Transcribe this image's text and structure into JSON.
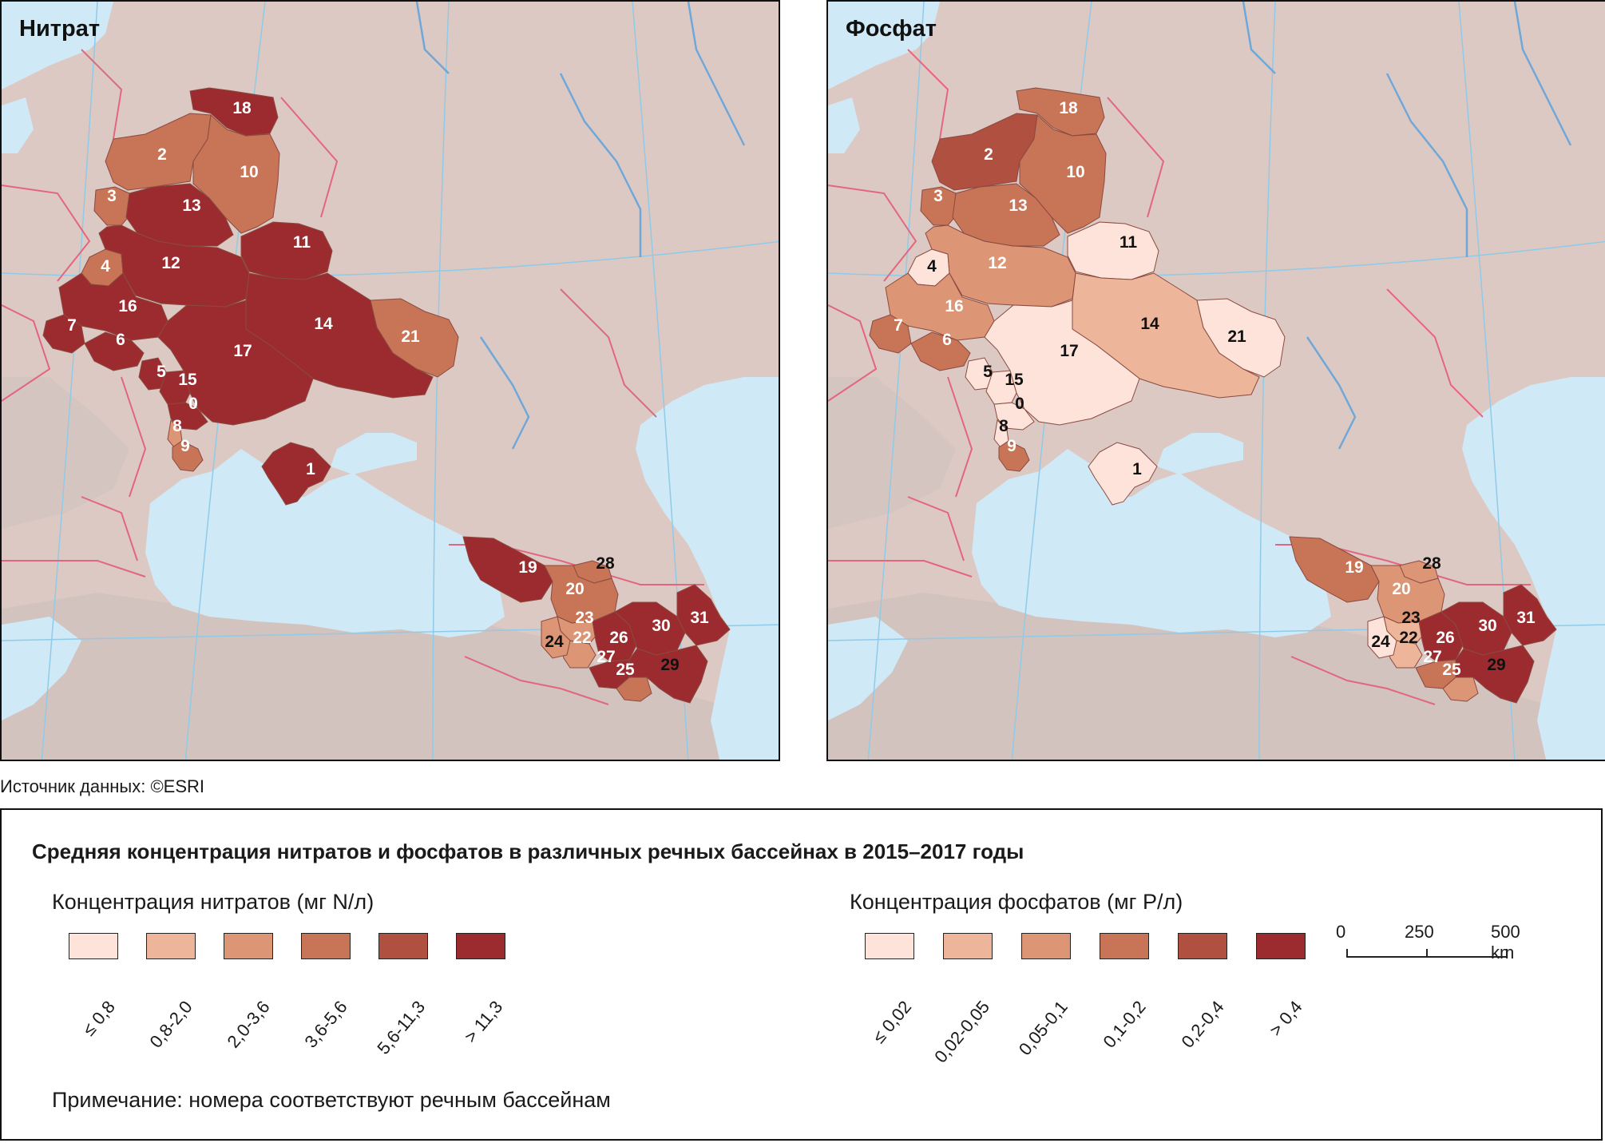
{
  "maps": {
    "left": {
      "title": "Нитрат"
    },
    "right": {
      "title": "Фосфат"
    }
  },
  "source": "Источник данных:  ©ESRI",
  "legend": {
    "title": "Средняя концентрация нитратов и фосфатов в различных речных бассейнах в 2015–2017 годы",
    "nitrate": {
      "heading": "Концентрация нитратов (мг N/л)",
      "classes": [
        {
          "label": "≤ 0,8",
          "color": "#fde3d9"
        },
        {
          "label": "0,8-2,0",
          "color": "#edb59a"
        },
        {
          "label": "2,0-3,6",
          "color": "#dc9575"
        },
        {
          "label": "3,6-5,6",
          "color": "#c87456"
        },
        {
          "label": "5,6-11,3",
          "color": "#b05040"
        },
        {
          "label": "> 11,3",
          "color": "#9c2b2f"
        }
      ]
    },
    "phosphate": {
      "heading": "Концентрация фосфатов (мг P/л)",
      "classes": [
        {
          "label": "≤ 0,02",
          "color": "#fde3d9"
        },
        {
          "label": "0,02-0,05",
          "color": "#edb59a"
        },
        {
          "label": "0,05-0,1",
          "color": "#dc9575"
        },
        {
          "label": "0,1-0,2",
          "color": "#c87456"
        },
        {
          "label": "0,2-0,4",
          "color": "#b05040"
        },
        {
          "label": "> 0,4",
          "color": "#9c2b2f"
        }
      ]
    },
    "scale": {
      "ticks": [
        "0",
        "250",
        "500 km"
      ]
    },
    "note": "Примечание: номера соответствуют речным бассейнам"
  },
  "colors": {
    "water": "#cfe9f7",
    "land": "#dcc9c4",
    "border": "#e3667f",
    "graticule": "#8fcbe8"
  },
  "basins": {
    "nitrate": {
      "18": "> 11,3",
      "2": "3,6-5,6",
      "10": "3,6-5,6",
      "3": "3,6-5,6",
      "13": "> 11,3",
      "11": "> 11,3",
      "4": "3,6-5,6",
      "12": "> 11,3",
      "16": "> 11,3",
      "7": "> 11,3",
      "6": "> 11,3",
      "14": "> 11,3",
      "21": "3,6-5,6",
      "17": "> 11,3",
      "5": "> 11,3",
      "15": "> 11,3",
      "0": "> 11,3",
      "8": "2,0-3,6",
      "9": "3,6-5,6",
      "1": "> 11,3",
      "19": "> 11,3",
      "28": "3,6-5,6",
      "20": "3,6-5,6",
      "23": "2,0-3,6",
      "31": "> 11,3",
      "30": "> 11,3",
      "24": "2,0-3,6",
      "22": "2,0-3,6",
      "26": "> 11,3",
      "27": "> 11,3",
      "25": "3,6-5,6",
      "29": "> 11,3"
    },
    "phosphate": {
      "18": "0,1-0,2",
      "2": "0,2-0,4",
      "10": "0,1-0,2",
      "3": "0,1-0,2",
      "13": "0,1-0,2",
      "11": "≤ 0,02",
      "4": "≤ 0,02",
      "12": "0,05-0,1",
      "16": "0,05-0,1",
      "7": "0,1-0,2",
      "6": "0,1-0,2",
      "14": "0,02-0,05",
      "21": "≤ 0,02",
      "17": "≤ 0,02",
      "5": "≤ 0,02",
      "15": "≤ 0,02",
      "0": "≤ 0,02",
      "8": "≤ 0,02",
      "9": "0,1-0,2",
      "1": "≤ 0,02",
      "19": "0,1-0,2",
      "28": "0,05-0,1",
      "20": "0,05-0,1",
      "23": "0,02-0,05",
      "31": "> 0,4",
      "30": "> 0,4",
      "24": "≤ 0,02",
      "22": "0,02-0,05",
      "26": "> 0,4",
      "27": "0,1-0,2",
      "25": "0,05-0,1",
      "29": "> 0,4"
    }
  }
}
